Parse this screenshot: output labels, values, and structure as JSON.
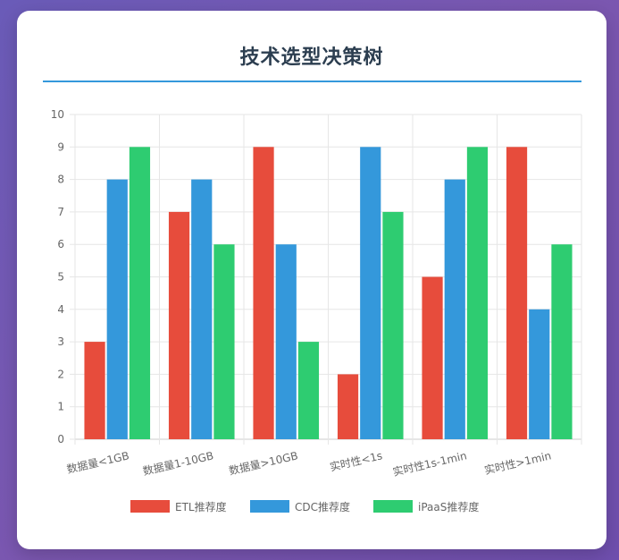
{
  "page": {
    "title": "技术选型决策树"
  },
  "chart_data": {
    "type": "bar",
    "title": "",
    "xlabel": "",
    "ylabel": "",
    "ylim": [
      0,
      10
    ],
    "y_ticks": [
      0,
      1,
      2,
      3,
      4,
      5,
      6,
      7,
      8,
      9,
      10
    ],
    "grid": true,
    "legend_position": "bottom",
    "categories": [
      "数据量<1GB",
      "数据量1-10GB",
      "数据量>10GB",
      "实时性<1s",
      "实时性1s-1min",
      "实时性>1min"
    ],
    "series": [
      {
        "name": "ETL推荐度",
        "color": "#e74c3c",
        "values": [
          3,
          7,
          9,
          2,
          5,
          9
        ]
      },
      {
        "name": "CDC推荐度",
        "color": "#3498db",
        "values": [
          8,
          8,
          6,
          9,
          8,
          4
        ]
      },
      {
        "name": "iPaaS推荐度",
        "color": "#2ecc71",
        "values": [
          9,
          6,
          3,
          7,
          9,
          6
        ]
      }
    ]
  }
}
